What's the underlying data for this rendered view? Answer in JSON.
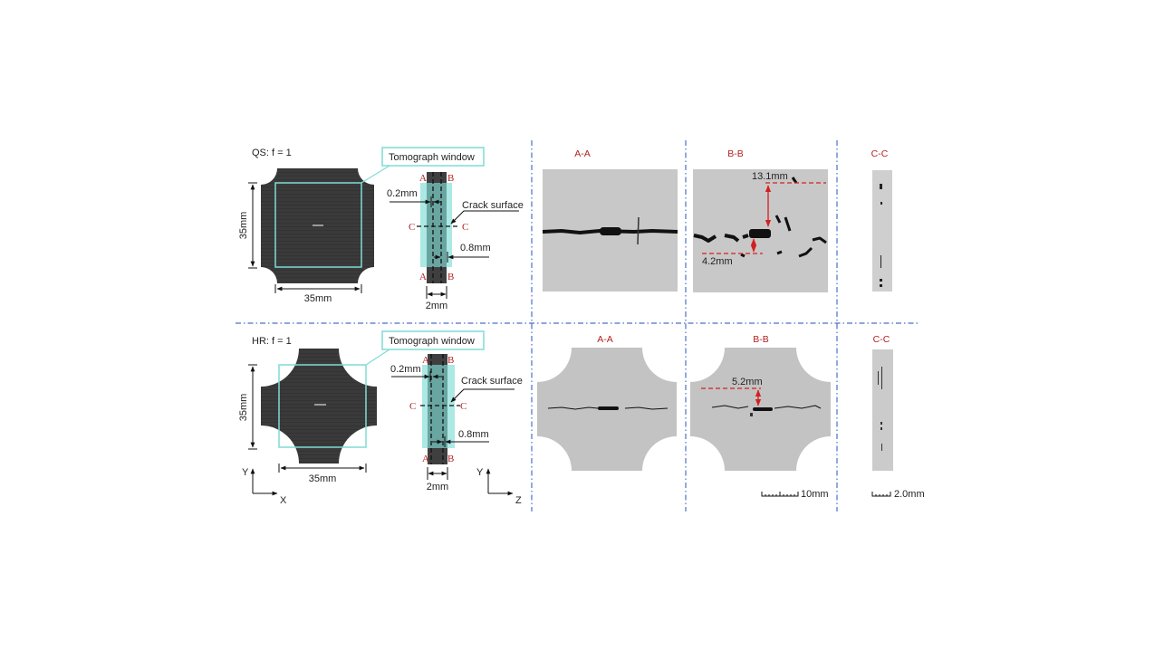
{
  "colors": {
    "specimen": "#3a3a3a",
    "window": "#7fdcd6",
    "section_label": "#b22222",
    "dimension_red": "#d42020",
    "divider": "#4a72c4",
    "ct_background": "#c9c9c9"
  },
  "top": {
    "condition": "QS: f = 1",
    "window_label": "Tomograph window",
    "dim_height": "35mm",
    "dim_width": "35mm",
    "section": {
      "a": "A",
      "b": "B",
      "c": "C",
      "dim_02": "0.2mm",
      "crack_surface": "Crack surface",
      "dim_08": "0.8mm",
      "dim_thickness": "2mm"
    },
    "images": {
      "aa_title": "A-A",
      "bb_title": "B-B",
      "cc_title": "C-C",
      "bb_dim_upper": "13.1mm",
      "bb_dim_lower": "4.2mm"
    }
  },
  "bottom": {
    "condition": "HR: f = 1",
    "window_label": "Tomograph window",
    "dim_height": "35mm",
    "dim_width": "35mm",
    "section": {
      "a": "A",
      "b": "B",
      "c": "C",
      "dim_02": "0.2mm",
      "crack_surface": "Crack surface",
      "dim_08": "0.8mm",
      "dim_thickness": "2mm"
    },
    "images": {
      "aa_title": "A-A",
      "bb_title": "B-B",
      "cc_title": "C-C",
      "bb_dim": "5.2mm"
    },
    "axes_xy": {
      "y": "Y",
      "x": "X"
    },
    "axes_yz": {
      "y": "Y",
      "z": "Z"
    },
    "scale_10": "10mm",
    "scale_2": "2.0mm"
  }
}
